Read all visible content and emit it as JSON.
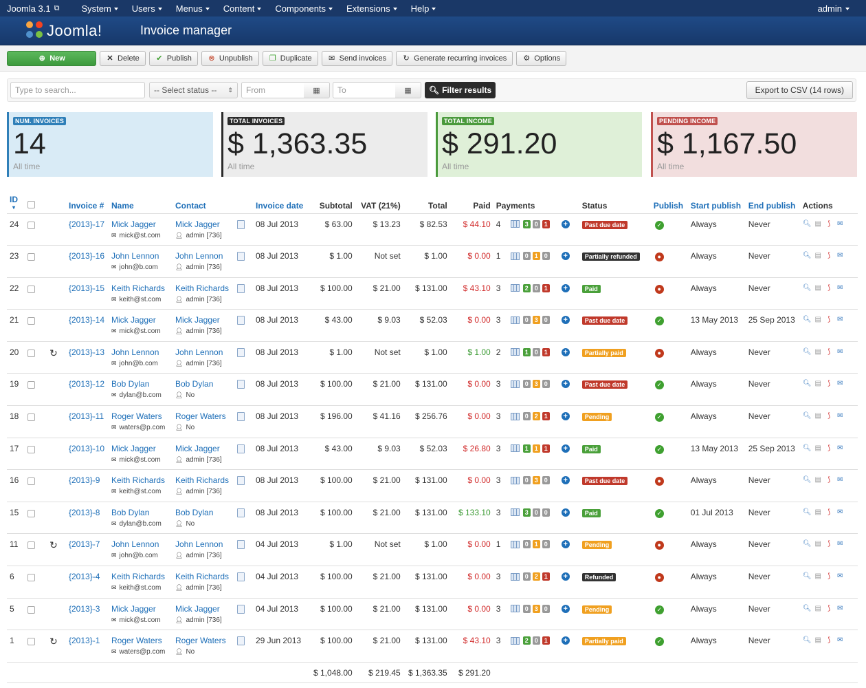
{
  "topnav": {
    "brand": "Joomla 3.1",
    "menu": [
      "System",
      "Users",
      "Menus",
      "Content",
      "Components",
      "Extensions",
      "Help"
    ],
    "user": "admin"
  },
  "header": {
    "logo": "Joomla!",
    "title": "Invoice manager"
  },
  "toolbar": {
    "new": "New",
    "delete": "Delete",
    "publish": "Publish",
    "unpublish": "Unpublish",
    "duplicate": "Duplicate",
    "send": "Send invoices",
    "recurring": "Generate recurring invoices",
    "options": "Options"
  },
  "filters": {
    "search_placeholder": "Type to search...",
    "status": "-- Select status --",
    "from_placeholder": "From",
    "to_placeholder": "To",
    "filter": "Filter results",
    "export": "Export to CSV (14 rows)"
  },
  "stats": [
    {
      "label": "NUM. INVOICES",
      "value": "14",
      "sub": "All time",
      "color": "#2f7fb8",
      "bg": "#d9ebf6"
    },
    {
      "label": "TOTAL INVOICES",
      "value": "$ 1,363.35",
      "sub": "All time",
      "color": "#2b2b2b",
      "bg": "#ececec"
    },
    {
      "label": "TOTAL INCOME",
      "value": "$ 291.20",
      "sub": "All time",
      "color": "#4a9a3c",
      "bg": "#dff0d8"
    },
    {
      "label": "PENDING INCOME",
      "value": "$ 1,167.50",
      "sub": "All time",
      "color": "#c0504d",
      "bg": "#f2dede"
    }
  ],
  "columns": {
    "id": "ID",
    "invoice": "Invoice #",
    "name": "Name",
    "contact": "Contact",
    "date": "Invoice date",
    "subtotal": "Subtotal",
    "vat": "VAT (21%)",
    "total": "Total",
    "paid": "Paid",
    "payments": "Payments",
    "status": "Status",
    "publish": "Publish",
    "start": "Start publish",
    "end": "End publish",
    "actions": "Actions"
  },
  "status_colors": {
    "Past due date": "#c0392b",
    "Partially refunded": "#333333",
    "Paid": "#4aa03a",
    "Partially paid": "#f0a020",
    "Pending": "#f0a020",
    "Refunded": "#333333"
  },
  "rows": [
    {
      "id": "24",
      "recurring": false,
      "invoice": "{2013}-17",
      "name": "Mick Jagger",
      "email": "mick@st.com",
      "contact": "Mick Jagger",
      "user": "admin [736]",
      "date": "08 Jul 2013",
      "subtotal": "$ 63.00",
      "vat": "$ 13.23",
      "total": "$ 82.53",
      "paid": "$ 44.10",
      "paid_color": "red",
      "pcount": "4",
      "p": [
        "3",
        "0",
        "1"
      ],
      "status": "Past due date",
      "published": true,
      "start": "Always",
      "end": "Never"
    },
    {
      "id": "23",
      "recurring": false,
      "invoice": "{2013}-16",
      "name": "John Lennon",
      "email": "john@b.com",
      "contact": "John Lennon",
      "user": "admin [736]",
      "date": "08 Jul 2013",
      "subtotal": "$ 1.00",
      "vat": "Not set",
      "total": "$ 1.00",
      "paid": "$ 0.00",
      "paid_color": "red",
      "pcount": "1",
      "p": [
        "0",
        "1",
        "0"
      ],
      "status": "Partially refunded",
      "published": false,
      "start": "Always",
      "end": "Never"
    },
    {
      "id": "22",
      "recurring": false,
      "invoice": "{2013}-15",
      "name": "Keith Richards",
      "email": "keith@st.com",
      "contact": "Keith Richards",
      "user": "admin [736]",
      "date": "08 Jul 2013",
      "subtotal": "$ 100.00",
      "vat": "$ 21.00",
      "total": "$ 131.00",
      "paid": "$ 43.10",
      "paid_color": "red",
      "pcount": "3",
      "p": [
        "2",
        "0",
        "1"
      ],
      "status": "Paid",
      "published": false,
      "start": "Always",
      "end": "Never"
    },
    {
      "id": "21",
      "recurring": false,
      "invoice": "{2013}-14",
      "name": "Mick Jagger",
      "email": "mick@st.com",
      "contact": "Mick Jagger",
      "user": "admin [736]",
      "date": "08 Jul 2013",
      "subtotal": "$ 43.00",
      "vat": "$ 9.03",
      "total": "$ 52.03",
      "paid": "$ 0.00",
      "paid_color": "red",
      "pcount": "3",
      "p": [
        "0",
        "3",
        "0"
      ],
      "status": "Past due date",
      "published": true,
      "start": "13 May 2013",
      "end": "25 Sep 2013"
    },
    {
      "id": "20",
      "recurring": true,
      "invoice": "{2013}-13",
      "name": "John Lennon",
      "email": "john@b.com",
      "contact": "John Lennon",
      "user": "admin [736]",
      "date": "08 Jul 2013",
      "subtotal": "$ 1.00",
      "vat": "Not set",
      "total": "$ 1.00",
      "paid": "$ 1.00",
      "paid_color": "green",
      "pcount": "2",
      "p": [
        "1",
        "0",
        "1"
      ],
      "status": "Partially paid",
      "published": false,
      "start": "Always",
      "end": "Never"
    },
    {
      "id": "19",
      "recurring": false,
      "invoice": "{2013}-12",
      "name": "Bob Dylan",
      "email": "dylan@b.com",
      "contact": "Bob Dylan",
      "user": "No",
      "date": "08 Jul 2013",
      "subtotal": "$ 100.00",
      "vat": "$ 21.00",
      "total": "$ 131.00",
      "paid": "$ 0.00",
      "paid_color": "red",
      "pcount": "3",
      "p": [
        "0",
        "3",
        "0"
      ],
      "status": "Past due date",
      "published": true,
      "start": "Always",
      "end": "Never"
    },
    {
      "id": "18",
      "recurring": false,
      "invoice": "{2013}-11",
      "name": "Roger Waters",
      "email": "waters@p.com",
      "contact": "Roger Waters",
      "user": "No",
      "date": "08 Jul 2013",
      "subtotal": "$ 196.00",
      "vat": "$ 41.16",
      "total": "$ 256.76",
      "paid": "$ 0.00",
      "paid_color": "red",
      "pcount": "3",
      "p": [
        "0",
        "2",
        "1"
      ],
      "status": "Pending",
      "published": true,
      "start": "Always",
      "end": "Never"
    },
    {
      "id": "17",
      "recurring": false,
      "invoice": "{2013}-10",
      "name": "Mick Jagger",
      "email": "mick@st.com",
      "contact": "Mick Jagger",
      "user": "admin [736]",
      "date": "08 Jul 2013",
      "subtotal": "$ 43.00",
      "vat": "$ 9.03",
      "total": "$ 52.03",
      "paid": "$ 26.80",
      "paid_color": "red",
      "pcount": "3",
      "p": [
        "1",
        "1",
        "1"
      ],
      "status": "Paid",
      "published": true,
      "start": "13 May 2013",
      "end": "25 Sep 2013"
    },
    {
      "id": "16",
      "recurring": false,
      "invoice": "{2013}-9",
      "name": "Keith Richards",
      "email": "keith@st.com",
      "contact": "Keith Richards",
      "user": "admin [736]",
      "date": "08 Jul 2013",
      "subtotal": "$ 100.00",
      "vat": "$ 21.00",
      "total": "$ 131.00",
      "paid": "$ 0.00",
      "paid_color": "red",
      "pcount": "3",
      "p": [
        "0",
        "3",
        "0"
      ],
      "status": "Past due date",
      "published": false,
      "start": "Always",
      "end": "Never"
    },
    {
      "id": "15",
      "recurring": false,
      "invoice": "{2013}-8",
      "name": "Bob Dylan",
      "email": "dylan@b.com",
      "contact": "Bob Dylan",
      "user": "No",
      "date": "08 Jul 2013",
      "subtotal": "$ 100.00",
      "vat": "$ 21.00",
      "total": "$ 131.00",
      "paid": "$ 133.10",
      "paid_color": "green",
      "pcount": "3",
      "p": [
        "3",
        "0",
        "0"
      ],
      "status": "Paid",
      "published": true,
      "start": "01 Jul 2013",
      "end": "Never"
    },
    {
      "id": "11",
      "recurring": true,
      "invoice": "{2013}-7",
      "name": "John Lennon",
      "email": "john@b.com",
      "contact": "John Lennon",
      "user": "admin [736]",
      "date": "04 Jul 2013",
      "subtotal": "$ 1.00",
      "vat": "Not set",
      "total": "$ 1.00",
      "paid": "$ 0.00",
      "paid_color": "red",
      "pcount": "1",
      "p": [
        "0",
        "1",
        "0"
      ],
      "status": "Pending",
      "published": false,
      "start": "Always",
      "end": "Never"
    },
    {
      "id": "6",
      "recurring": false,
      "invoice": "{2013}-4",
      "name": "Keith Richards",
      "email": "keith@st.com",
      "contact": "Keith Richards",
      "user": "admin [736]",
      "date": "04 Jul 2013",
      "subtotal": "$ 100.00",
      "vat": "$ 21.00",
      "total": "$ 131.00",
      "paid": "$ 0.00",
      "paid_color": "red",
      "pcount": "3",
      "p": [
        "0",
        "2",
        "1"
      ],
      "status": "Refunded",
      "published": false,
      "start": "Always",
      "end": "Never"
    },
    {
      "id": "5",
      "recurring": false,
      "invoice": "{2013}-3",
      "name": "Mick Jagger",
      "email": "mick@st.com",
      "contact": "Mick Jagger",
      "user": "admin [736]",
      "date": "04 Jul 2013",
      "subtotal": "$ 100.00",
      "vat": "$ 21.00",
      "total": "$ 131.00",
      "paid": "$ 0.00",
      "paid_color": "red",
      "pcount": "3",
      "p": [
        "0",
        "3",
        "0"
      ],
      "status": "Pending",
      "published": true,
      "start": "Always",
      "end": "Never"
    },
    {
      "id": "1",
      "recurring": true,
      "invoice": "{2013}-1",
      "name": "Roger Waters",
      "email": "waters@p.com",
      "contact": "Roger Waters",
      "user": "No",
      "date": "29 Jun 2013",
      "subtotal": "$ 100.00",
      "vat": "$ 21.00",
      "total": "$ 131.00",
      "paid": "$ 43.10",
      "paid_color": "red",
      "pcount": "3",
      "p": [
        "2",
        "0",
        "1"
      ],
      "status": "Partially paid",
      "published": true,
      "start": "Always",
      "end": "Never"
    }
  ],
  "totals": {
    "subtotal": "$ 1,048.00",
    "vat": "$ 219.45",
    "total": "$ 1,363.35",
    "paid": "$ 291.20"
  },
  "payment_badge_colors": [
    "#4aa03a",
    "#f0a020",
    "#c0392b"
  ]
}
